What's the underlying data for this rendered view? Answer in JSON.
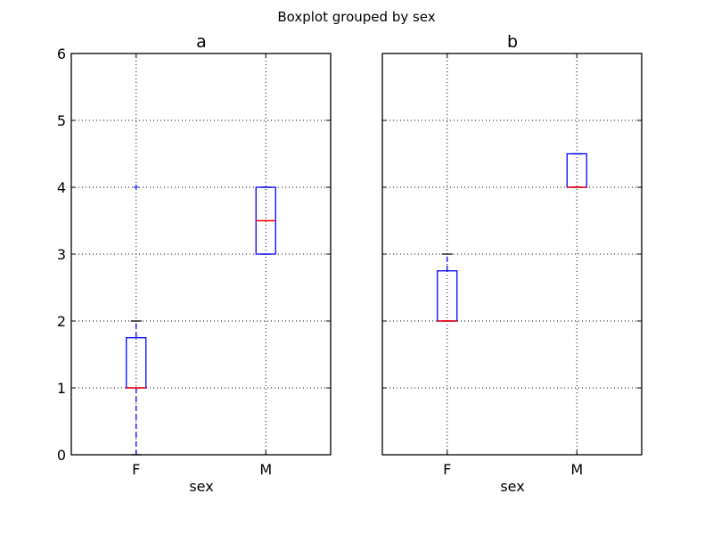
{
  "chart_data": {
    "type": "boxplot",
    "suptitle": "Boxplot grouped by sex",
    "ylim": [
      0,
      6
    ],
    "yticks": [
      0,
      1,
      2,
      3,
      4,
      5,
      6
    ],
    "grid": true,
    "colors": {
      "box": "#0000ff",
      "median": "#ff0000",
      "cap": "#000000",
      "whisker": "#0000ff",
      "flier": "#0000ff"
    },
    "panels": [
      {
        "title": "a",
        "xlabel": "sex",
        "categories": [
          "F",
          "M"
        ],
        "boxes": [
          {
            "category": "F",
            "whisker_low": 0,
            "q1": 1,
            "median": 1,
            "q3": 1.75,
            "whisker_high": 2,
            "fliers": [
              4
            ]
          },
          {
            "category": "M",
            "whisker_low": 3,
            "q1": 3,
            "median": 3.5,
            "q3": 4,
            "whisker_high": 4,
            "fliers": []
          }
        ]
      },
      {
        "title": "b",
        "xlabel": "sex",
        "categories": [
          "F",
          "M"
        ],
        "boxes": [
          {
            "category": "F",
            "whisker_low": 2,
            "q1": 2,
            "median": 2,
            "q3": 2.75,
            "whisker_high": 3,
            "fliers": []
          },
          {
            "category": "M",
            "whisker_low": 4,
            "q1": 4,
            "median": 4,
            "q3": 4.5,
            "whisker_high": 4.5,
            "fliers": []
          }
        ]
      }
    ]
  }
}
